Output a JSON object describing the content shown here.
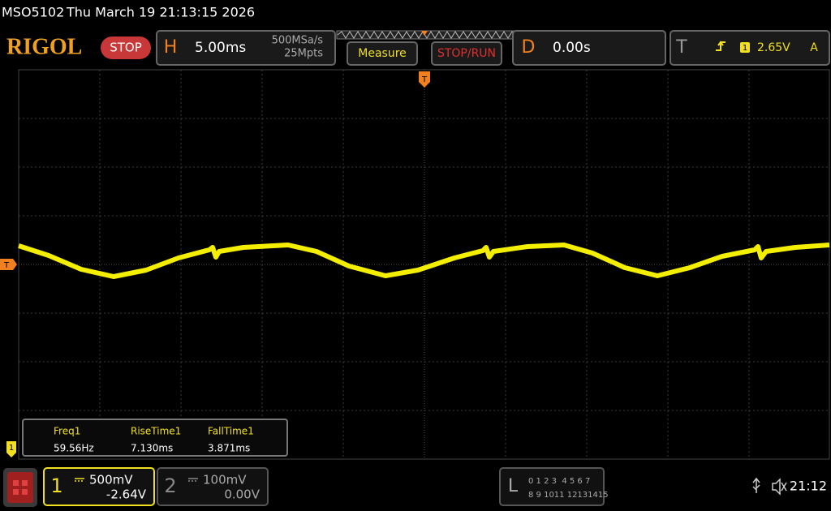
{
  "status_bar": {
    "model": "MSO5102",
    "datetime": "Thu March 19 21:13:15 2026"
  },
  "toolbar": {
    "logo": "RIGOL",
    "run_state": "STOP",
    "horizontal": {
      "label": "H",
      "timebase": "5.00ms",
      "sample_rate": "500MSa/s",
      "memory_depth": "25Mpts"
    },
    "measure_button": "Measure",
    "stop_run_button": "STOP/RUN",
    "delay": {
      "label": "D",
      "value": "0.00s"
    },
    "trigger": {
      "label": "T",
      "source": "1",
      "level": "2.65V",
      "mode": "A"
    }
  },
  "markers": {
    "trigger_level": "T",
    "trigger_position": "T",
    "channel1": "1"
  },
  "measurements": [
    {
      "name": "Freq1",
      "value": "59.56Hz"
    },
    {
      "name": "RiseTime1",
      "value": "7.130ms"
    },
    {
      "name": "FallTime1",
      "value": "3.871ms"
    }
  ],
  "channels": [
    {
      "number": "1",
      "scale": "500mV",
      "offset": "-2.64V"
    },
    {
      "number": "2",
      "scale": "100mV",
      "offset": "0.00V"
    }
  ],
  "logic": {
    "label": "L",
    "row1": "0 1 2 3  4 5 6 7",
    "row2": "8 9 1011 12131415"
  },
  "clock": "21:12"
}
